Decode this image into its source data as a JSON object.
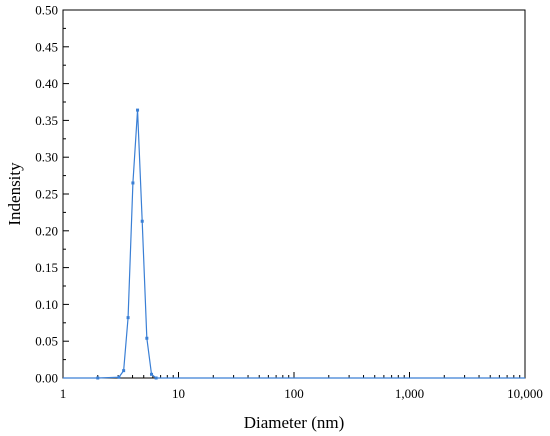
{
  "chart_data": {
    "type": "line",
    "xlabel": "Diameter (nm)",
    "ylabel": "Indensity",
    "x_scale": "log",
    "xlim": [
      1,
      10000
    ],
    "ylim": [
      0,
      0.5
    ],
    "x_ticks": [
      1,
      10,
      100,
      1000,
      10000
    ],
    "x_tick_labels": [
      "1",
      "10",
      "100",
      "1,000",
      "10,000"
    ],
    "y_ticks": [
      0,
      0.05,
      0.1,
      0.15,
      0.2,
      0.25,
      0.3,
      0.35,
      0.4,
      0.45,
      0.5
    ],
    "y_tick_labels": [
      "0.00",
      "0.05",
      "0.10",
      "0.15",
      "0.20",
      "0.25",
      "0.30",
      "0.35",
      "0.40",
      "0.45",
      "0.50"
    ],
    "grid": false,
    "series": [
      {
        "color": "#3a7fd5",
        "x": [
          1,
          2,
          3.05,
          3.35,
          3.66,
          4.03,
          4.42,
          4.85,
          5.32,
          5.84,
          6.4,
          10,
          100,
          1000,
          10000
        ],
        "y": [
          0,
          0,
          0.001,
          0.01,
          0.082,
          0.265,
          0.364,
          0.213,
          0.054,
          0.005,
          0,
          0,
          0,
          0,
          0
        ]
      }
    ]
  }
}
